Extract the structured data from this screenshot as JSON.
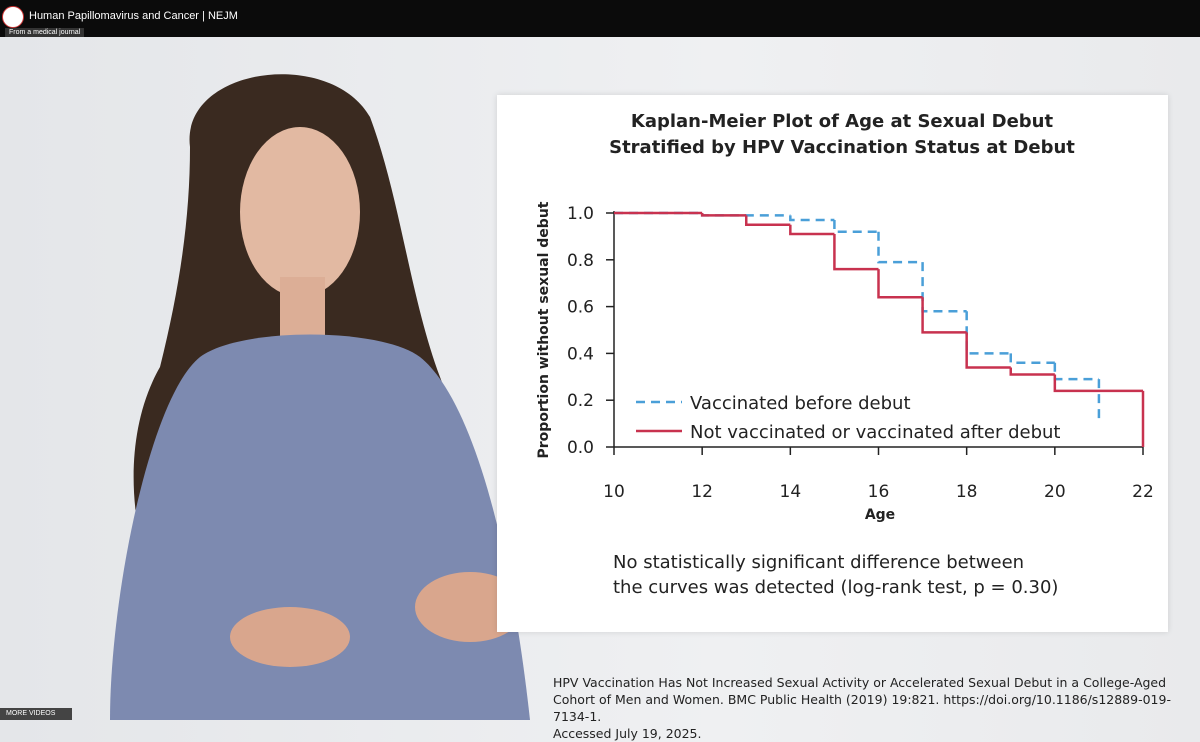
{
  "header": {
    "title": "Human Papillomavirus and Cancer | NEJM",
    "badge": "From a medical journal"
  },
  "footer": {
    "more_videos": "MORE VIDEOS"
  },
  "chart_data": {
    "type": "step",
    "title": [
      "Kaplan-Meier Plot of Age at Sexual Debut",
      "Stratified by HPV Vaccination Status at Debut"
    ],
    "x_label": "Age",
    "y_label": "Proportion without sexual debut",
    "xlim": [
      10,
      22
    ],
    "xticks": [
      10,
      12,
      14,
      16,
      18,
      20,
      22
    ],
    "ylim": [
      0,
      1
    ],
    "yticks": [
      {
        "value": 0,
        "label": "0.0"
      },
      0.2,
      0.4,
      0.6,
      0.8,
      {
        "value": 1,
        "label": "1.0"
      }
    ],
    "legend": "lower left",
    "series": [
      {
        "name": "Vaccinated before debut",
        "color": "#4a9fd8",
        "dashed": true,
        "x": [
          10,
          12,
          14,
          15,
          16,
          17,
          18,
          19,
          20,
          21
        ],
        "values": [
          1,
          0.99,
          0.97,
          0.92,
          0.79,
          0.58,
          0.4,
          0.36,
          0.29,
          0.11
        ]
      },
      {
        "name": "Not vaccinated or vaccinated after debut",
        "color": "#c8324f",
        "dashed": false,
        "x": [
          10,
          12,
          13,
          14,
          15,
          16,
          17,
          18,
          19,
          20,
          22
        ],
        "values": [
          1,
          0.99,
          0.95,
          0.91,
          0.76,
          0.64,
          0.49,
          0.34,
          0.31,
          0.24,
          0
        ]
      }
    ],
    "note": [
      "No statistically significant difference between",
      "the curves was detected (log-rank test, p = 0.30)"
    ]
  },
  "citation": [
    "HPV Vaccination Has Not Increased Sexual Activity or Accelerated Sexual Debut in a College-Aged",
    "Cohort of Men and Women. BMC Public Health (2019) 19:821. https://doi.org/10.1186/s12889-019-7134-1.",
    "Accessed July 19, 2025."
  ]
}
